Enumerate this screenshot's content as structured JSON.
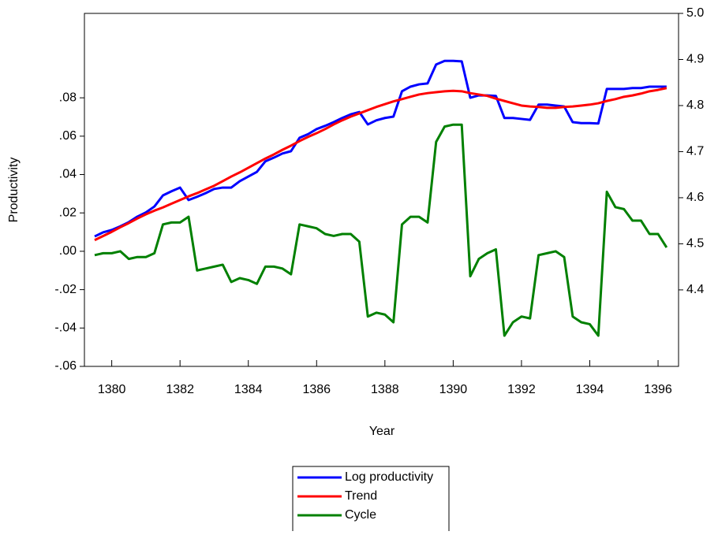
{
  "chart_data": {
    "type": "line",
    "y_label": "Productivity",
    "x_label": "Year",
    "x": [
      1379.5,
      1379.75,
      1380,
      1380.25,
      1380.5,
      1380.75,
      1381,
      1381.25,
      1381.5,
      1381.75,
      1382,
      1382.25,
      1382.5,
      1382.75,
      1383,
      1383.25,
      1383.5,
      1383.75,
      1384,
      1384.25,
      1384.5,
      1384.75,
      1385,
      1385.25,
      1385.5,
      1385.75,
      1386,
      1386.25,
      1386.5,
      1386.75,
      1387,
      1387.25,
      1387.5,
      1387.75,
      1388,
      1388.25,
      1388.5,
      1388.75,
      1389,
      1389.25,
      1389.5,
      1389.75,
      1390,
      1390.25,
      1390.5,
      1390.75,
      1391,
      1391.25,
      1391.5,
      1391.75,
      1392,
      1392.25,
      1392.5,
      1392.75,
      1393,
      1393.25,
      1393.5,
      1393.75,
      1394,
      1394.25,
      1394.5,
      1394.75,
      1395,
      1395.25,
      1395.5,
      1395.75,
      1396,
      1396.25
    ],
    "series": [
      {
        "name": "Log productivity",
        "color": "#0000ff",
        "axis": "y2",
        "values": [
          4.516,
          4.525,
          4.53,
          4.538,
          4.547,
          4.559,
          4.568,
          4.581,
          4.605,
          4.614,
          4.622,
          4.595,
          4.602,
          4.61,
          4.619,
          4.622,
          4.622,
          4.636,
          4.646,
          4.656,
          4.679,
          4.687,
          4.696,
          4.701,
          4.73,
          4.738,
          4.749,
          4.756,
          4.764,
          4.773,
          4.781,
          4.786,
          4.759,
          4.768,
          4.773,
          4.776,
          4.831,
          4.841,
          4.846,
          4.848,
          4.889,
          4.897,
          4.897,
          4.896,
          4.817,
          4.822,
          4.822,
          4.821,
          4.773,
          4.773,
          4.771,
          4.769,
          4.802,
          4.802,
          4.8,
          4.798,
          4.764,
          4.762,
          4.762,
          4.761,
          4.836,
          4.836,
          4.836,
          4.838,
          4.838,
          4.841,
          4.841,
          4.841
        ]
      },
      {
        "name": "Trend",
        "color": "#ff0000",
        "axis": "y2",
        "values": [
          4.508,
          4.517,
          4.526,
          4.536,
          4.545,
          4.555,
          4.564,
          4.572,
          4.579,
          4.587,
          4.595,
          4.603,
          4.61,
          4.618,
          4.626,
          4.636,
          4.646,
          4.655,
          4.665,
          4.675,
          4.685,
          4.694,
          4.704,
          4.713,
          4.723,
          4.732,
          4.74,
          4.749,
          4.759,
          4.768,
          4.776,
          4.783,
          4.79,
          4.797,
          4.803,
          4.809,
          4.814,
          4.819,
          4.824,
          4.827,
          4.829,
          4.831,
          4.832,
          4.831,
          4.827,
          4.824,
          4.821,
          4.815,
          4.81,
          4.805,
          4.8,
          4.798,
          4.797,
          4.795,
          4.795,
          4.797,
          4.798,
          4.8,
          4.802,
          4.805,
          4.81,
          4.814,
          4.819,
          4.822,
          4.826,
          4.831,
          4.834,
          4.838
        ]
      },
      {
        "name": "Cycle",
        "color": "#008000",
        "values": [
          -0.002,
          -0.001,
          -0.001,
          0.0,
          -0.004,
          -0.003,
          -0.003,
          -0.001,
          0.014,
          0.015,
          0.015,
          0.018,
          -0.01,
          -0.009,
          -0.008,
          -0.007,
          -0.016,
          -0.014,
          -0.015,
          -0.017,
          -0.008,
          -0.008,
          -0.009,
          -0.012,
          0.014,
          0.013,
          0.012,
          0.009,
          0.008,
          0.009,
          0.009,
          0.005,
          -0.034,
          -0.032,
          -0.033,
          -0.037,
          0.014,
          0.018,
          0.018,
          0.015,
          0.057,
          0.065,
          0.066,
          0.066,
          -0.013,
          -0.004,
          -0.001,
          0.001,
          -0.044,
          -0.037,
          -0.034,
          -0.035,
          -0.002,
          -0.001,
          0.0,
          -0.003,
          -0.034,
          -0.037,
          -0.038,
          -0.044,
          0.031,
          0.023,
          0.022,
          0.016,
          0.016,
          0.009,
          0.009,
          0.002
        ]
      }
    ],
    "xlim": [
      1379.2,
      1396.6
    ],
    "xticks": [
      1380,
      1382,
      1384,
      1386,
      1388,
      1390,
      1392,
      1394,
      1396
    ],
    "ylim": [
      -0.06,
      0.124
    ],
    "yticks": [
      {
        "value": -0.06,
        "label": "-.06"
      },
      {
        "value": -0.04,
        "label": "-.04"
      },
      {
        "value": -0.02,
        "label": "-.02"
      },
      {
        "value": 0,
        "label": ".00"
      },
      {
        "value": 0.02,
        "label": ".02"
      },
      {
        "value": 0.04,
        "label": ".04"
      },
      {
        "value": 0.06,
        "label": ".06"
      },
      {
        "value": 0.08,
        "label": ".08"
      }
    ],
    "y2lim": [
      4.234,
      5.0
    ],
    "y2ticks": [
      4.4,
      4.5,
      4.6,
      4.7,
      4.8,
      4.9,
      {
        "value": 5,
        "label": "5.0"
      }
    ],
    "grid": false,
    "legend": "bottom"
  }
}
